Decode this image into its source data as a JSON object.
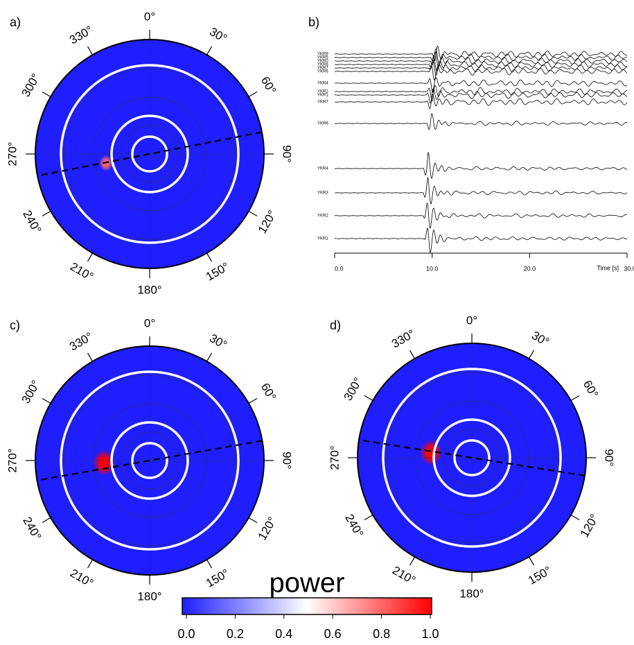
{
  "chart_data": [
    {
      "type": "polar",
      "label": "a)",
      "theta_ticks": [
        {
          "value": 0,
          "label": "0°"
        },
        {
          "value": 30,
          "label": "30°"
        },
        {
          "value": 60,
          "label": "60°"
        },
        {
          "value": 90,
          "label": "90°"
        },
        {
          "value": 120,
          "label": "120°"
        },
        {
          "value": 150,
          "label": "150°"
        },
        {
          "value": 180,
          "label": "180°"
        },
        {
          "value": 210,
          "label": "210°"
        },
        {
          "value": 240,
          "label": "240°"
        },
        {
          "value": 270,
          "label": "270°"
        },
        {
          "value": 300,
          "label": "300°"
        },
        {
          "value": 330,
          "label": "330°"
        }
      ],
      "line_azimuth": 79,
      "peaks": [
        {
          "azimuth": 258,
          "distance": 0.39,
          "power": 0.8
        }
      ]
    },
    {
      "type": "seismogram",
      "label": "b)",
      "xlabel": "Time [s]",
      "xlim": [
        0,
        30
      ],
      "xticks": [
        {
          "value": 0,
          "label": "0.0"
        },
        {
          "value": 10,
          "label": "10.0"
        },
        {
          "value": 20,
          "label": "20.0"
        },
        {
          "value": 30,
          "label": "30.0"
        }
      ],
      "series": [
        {
          "name": "YKR9",
          "onset": 10.4
        },
        {
          "name": "YKR5",
          "onset": 10.3
        },
        {
          "name": "YKR0",
          "onset": 10.3
        },
        {
          "name": "YKR8",
          "onset": 10.2
        },
        {
          "name": "YKR7",
          "onset": 10.2
        },
        {
          "name": "YKR6",
          "onset": 10.1
        },
        {
          "name": "YKR4",
          "onset": 10.0
        },
        {
          "name": "YKR2",
          "onset": 10.0
        },
        {
          "name": "YKR1",
          "onset": 9.9
        },
        {
          "name": "YKR7",
          "onset": 9.9
        },
        {
          "name": "YKR6",
          "onset": 9.9
        },
        {
          "name": "YKR4",
          "onset": 9.6
        },
        {
          "name": "YKR3",
          "onset": 9.6
        },
        {
          "name": "YKR2",
          "onset": 9.6
        },
        {
          "name": "YKR1",
          "onset": 9.7
        }
      ]
    },
    {
      "type": "polar",
      "label": "c)",
      "theta_ticks": [
        {
          "value": 0,
          "label": "0°"
        },
        {
          "value": 30,
          "label": "30°"
        },
        {
          "value": 60,
          "label": "60°"
        },
        {
          "value": 90,
          "label": "90°"
        },
        {
          "value": 120,
          "label": "120°"
        },
        {
          "value": 150,
          "label": "150°"
        },
        {
          "value": 180,
          "label": "180°"
        },
        {
          "value": 210,
          "label": "210°"
        },
        {
          "value": 240,
          "label": "240°"
        },
        {
          "value": 270,
          "label": "270°"
        },
        {
          "value": 300,
          "label": "300°"
        },
        {
          "value": 330,
          "label": "330°"
        }
      ],
      "line_azimuth": 80,
      "peaks": [
        {
          "azimuth": 267,
          "distance": 0.4,
          "power": 1.0
        }
      ]
    },
    {
      "type": "polar",
      "label": "d)",
      "theta_ticks": [
        {
          "value": 0,
          "label": "0°"
        },
        {
          "value": 30,
          "label": "30°"
        },
        {
          "value": 60,
          "label": "60°"
        },
        {
          "value": 90,
          "label": "90°"
        },
        {
          "value": 120,
          "label": "120°"
        },
        {
          "value": 150,
          "label": "150°"
        },
        {
          "value": 180,
          "label": "180°"
        },
        {
          "value": 210,
          "label": "210°"
        },
        {
          "value": 240,
          "label": "240°"
        },
        {
          "value": 270,
          "label": "270°"
        },
        {
          "value": 300,
          "label": "300°"
        },
        {
          "value": 330,
          "label": "330°"
        }
      ],
      "line_azimuth": 99,
      "peaks": [
        {
          "azimuth": 277,
          "distance": 0.36,
          "power": 1.0
        }
      ]
    },
    {
      "type": "colorbar",
      "title": "power",
      "clim": [
        0,
        1
      ],
      "colors": [
        "#1e1eff",
        "#ffffff",
        "#ff0000"
      ],
      "ticks": [
        {
          "value": 0,
          "label": "0.0"
        },
        {
          "value": 0.2,
          "label": "0.2"
        },
        {
          "value": 0.4,
          "label": "0.4"
        },
        {
          "value": 0.6,
          "label": "0.6"
        },
        {
          "value": 0.8,
          "label": "0.8"
        },
        {
          "value": 1.0,
          "label": "1.0"
        }
      ]
    }
  ]
}
